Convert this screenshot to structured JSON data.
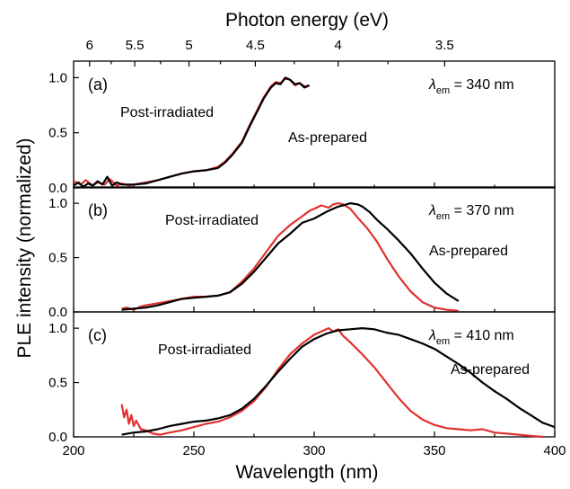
{
  "figure": {
    "top_axis_title": "Photon energy (eV)",
    "bottom_axis_title": "Wavelength (nm)",
    "y_axis_title": "PLE intensity (normalized)"
  },
  "chart_data": {
    "type": "line",
    "x_label": "Wavelength (nm)",
    "x_ticks": [
      "200",
      "250",
      "300",
      "350",
      "400"
    ],
    "xlim": [
      200,
      400
    ],
    "top_axis": {
      "label": "Photon energy (eV)",
      "tick_values": [
        6,
        5.5,
        5,
        4.5,
        4,
        3.5
      ],
      "tick_labels": [
        "6",
        "5.5",
        "5",
        "4.5",
        "4",
        "3.5"
      ]
    },
    "y_label": "PLE intensity (normalized)",
    "y_ticks": [
      "0.0",
      "0.5",
      "1.0"
    ],
    "ylim": [
      0,
      1.15
    ],
    "series_colors": {
      "post": "#e0312f",
      "asprep": "#000000"
    },
    "panels": [
      {
        "letter": "(a)",
        "lambda_em": "340 nm",
        "post_label": "Post-irradiated",
        "asprep_label": "As-prepared",
        "series": [
          {
            "key": "post",
            "x": [
              200,
              203,
              205,
              208,
              210,
              213,
              215,
              218,
              220,
              223,
              225,
              230,
              235,
              240,
              245,
              250,
              255,
              260,
              263,
              266,
              270,
              273,
              276,
              279,
              282,
              284,
              286,
              288,
              290,
              292,
              294,
              296,
              298
            ],
            "y": [
              0.06,
              0.03,
              0.07,
              0.02,
              0.05,
              0.03,
              0.08,
              0.02,
              0.04,
              0.02,
              0.03,
              0.05,
              0.07,
              0.1,
              0.13,
              0.15,
              0.16,
              0.19,
              0.24,
              0.31,
              0.42,
              0.56,
              0.69,
              0.82,
              0.92,
              0.96,
              0.95,
              0.99,
              0.98,
              0.93,
              0.95,
              0.92,
              0.93
            ]
          },
          {
            "key": "asprep",
            "x": [
              200,
              202,
              204,
              206,
              208,
              210,
              212,
              214,
              216,
              218,
              220,
              225,
              230,
              235,
              240,
              245,
              250,
              255,
              260,
              263,
              266,
              270,
              273,
              276,
              279,
              282,
              284,
              286,
              288,
              290,
              292,
              294,
              296,
              298
            ],
            "y": [
              0.02,
              0.05,
              0.01,
              0.04,
              0.02,
              0.06,
              0.03,
              0.1,
              0.02,
              0.05,
              0.03,
              0.03,
              0.04,
              0.07,
              0.1,
              0.13,
              0.15,
              0.16,
              0.18,
              0.23,
              0.3,
              0.41,
              0.55,
              0.68,
              0.81,
              0.91,
              0.95,
              0.94,
              1.0,
              0.98,
              0.94,
              0.95,
              0.91,
              0.93
            ]
          }
        ]
      },
      {
        "letter": "(b)",
        "lambda_em": "370 nm",
        "post_label": "Post-irradiated",
        "asprep_label": "As-prepared",
        "series": [
          {
            "key": "post",
            "x": [
              220,
              222,
              225,
              228,
              230,
              235,
              240,
              245,
              250,
              255,
              260,
              265,
              270,
              275,
              280,
              285,
              290,
              295,
              298,
              300,
              303,
              306,
              308,
              310,
              312,
              315,
              318,
              322,
              326,
              330,
              335,
              340,
              345,
              350,
              355,
              360
            ],
            "y": [
              0.03,
              0.04,
              0.02,
              0.05,
              0.06,
              0.08,
              0.1,
              0.12,
              0.14,
              0.14,
              0.15,
              0.18,
              0.28,
              0.4,
              0.55,
              0.7,
              0.8,
              0.88,
              0.93,
              0.95,
              0.98,
              0.96,
              0.99,
              1.0,
              0.99,
              0.95,
              0.87,
              0.77,
              0.65,
              0.5,
              0.33,
              0.19,
              0.09,
              0.04,
              0.02,
              0.01
            ]
          },
          {
            "key": "asprep",
            "x": [
              220,
              225,
              230,
              235,
              240,
              245,
              250,
              255,
              260,
              265,
              270,
              275,
              280,
              285,
              290,
              295,
              300,
              305,
              310,
              312,
              315,
              318,
              320,
              323,
              326,
              330,
              335,
              340,
              345,
              350,
              355,
              360
            ],
            "y": [
              0.02,
              0.03,
              0.04,
              0.06,
              0.09,
              0.12,
              0.13,
              0.14,
              0.15,
              0.18,
              0.26,
              0.37,
              0.5,
              0.63,
              0.72,
              0.82,
              0.86,
              0.92,
              0.97,
              0.98,
              1.0,
              0.99,
              0.97,
              0.92,
              0.85,
              0.77,
              0.66,
              0.54,
              0.4,
              0.27,
              0.17,
              0.1
            ]
          }
        ]
      },
      {
        "letter": "(c)",
        "lambda_em": "410 nm",
        "post_label": "Post-irradiated",
        "asprep_label": "As-prepared",
        "series": [
          {
            "key": "post",
            "x": [
              220,
              221,
              222,
              223,
              224,
              225,
              226,
              228,
              230,
              233,
              236,
              240,
              245,
              250,
              255,
              260,
              265,
              270,
              275,
              280,
              285,
              290,
              295,
              300,
              303,
              306,
              308,
              310,
              312,
              315,
              320,
              325,
              330,
              335,
              340,
              345,
              350,
              355,
              360,
              365,
              370,
              375,
              380,
              385,
              390,
              395
            ],
            "y": [
              0.3,
              0.18,
              0.25,
              0.12,
              0.2,
              0.1,
              0.15,
              0.07,
              0.06,
              0.03,
              0.02,
              0.04,
              0.06,
              0.09,
              0.12,
              0.14,
              0.18,
              0.24,
              0.33,
              0.46,
              0.62,
              0.76,
              0.86,
              0.94,
              0.97,
              1.0,
              0.97,
              0.99,
              0.93,
              0.87,
              0.76,
              0.64,
              0.5,
              0.36,
              0.24,
              0.16,
              0.11,
              0.08,
              0.07,
              0.06,
              0.07,
              0.04,
              0.03,
              0.02,
              0.01,
              0.0
            ]
          },
          {
            "key": "asprep",
            "x": [
              220,
              225,
              230,
              235,
              240,
              245,
              250,
              255,
              260,
              265,
              270,
              275,
              280,
              285,
              290,
              295,
              300,
              305,
              310,
              315,
              320,
              325,
              330,
              335,
              340,
              345,
              350,
              355,
              360,
              365,
              370,
              375,
              380,
              385,
              390,
              395,
              400
            ],
            "y": [
              0.02,
              0.04,
              0.05,
              0.07,
              0.1,
              0.12,
              0.14,
              0.15,
              0.17,
              0.2,
              0.26,
              0.35,
              0.47,
              0.6,
              0.72,
              0.83,
              0.9,
              0.95,
              0.98,
              0.99,
              1.0,
              0.99,
              0.96,
              0.94,
              0.9,
              0.86,
              0.81,
              0.74,
              0.67,
              0.59,
              0.5,
              0.42,
              0.35,
              0.27,
              0.2,
              0.13,
              0.09
            ]
          }
        ]
      }
    ]
  }
}
